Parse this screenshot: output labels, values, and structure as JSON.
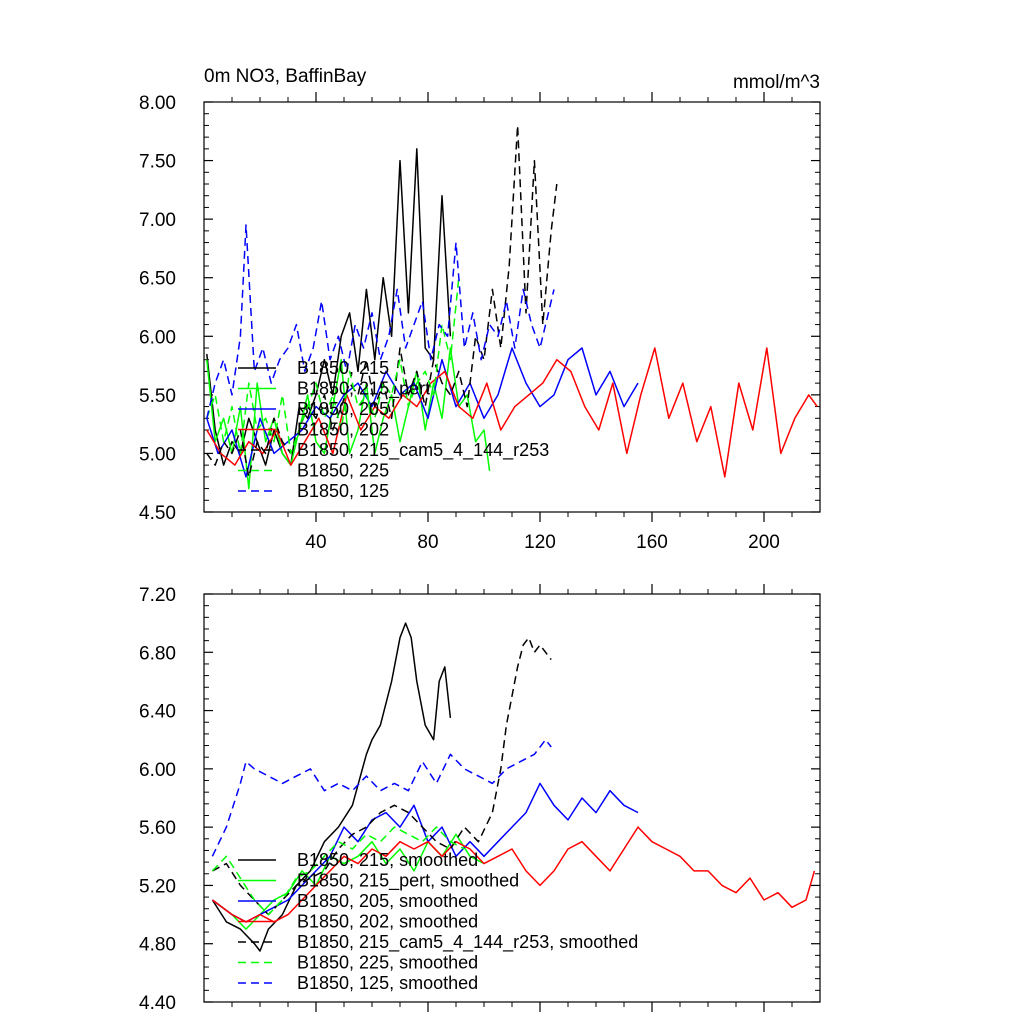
{
  "chart_data": [
    {
      "type": "line",
      "title": "0m NO3, BaffinBay",
      "units": "mmol/m^3",
      "xlabel": "",
      "ylabel": "",
      "xlim": [
        0,
        220
      ],
      "ylim": [
        4.5,
        8.0
      ],
      "xticks": [
        40,
        80,
        120,
        160,
        200
      ],
      "xtick_labels": [
        "40",
        "80",
        "120",
        "160",
        "200"
      ],
      "yticks": [
        4.5,
        5.0,
        5.5,
        6.0,
        6.5,
        7.0,
        7.5,
        8.0
      ],
      "ytick_labels": [
        "4.50",
        "5.00",
        "5.50",
        "6.00",
        "6.50",
        "7.00",
        "7.50",
        "8.00"
      ],
      "legend_position": "left",
      "series": [
        {
          "name": "B1850, 215",
          "color": "#000000",
          "dash": "solid",
          "x": [
            1,
            4,
            7,
            10,
            13,
            16,
            19,
            22,
            25,
            28,
            31,
            34,
            37,
            40,
            43,
            46,
            49,
            52,
            55,
            58,
            61,
            64,
            67,
            70,
            73,
            76,
            79,
            82,
            85,
            88
          ],
          "values": [
            5.85,
            5.2,
            4.9,
            5.1,
            5.0,
            5.3,
            5.1,
            4.9,
            5.2,
            5.0,
            4.9,
            5.4,
            5.3,
            5.5,
            5.8,
            5.5,
            6.0,
            6.2,
            5.7,
            6.4,
            5.8,
            6.5,
            6.0,
            7.5,
            6.2,
            7.6,
            5.9,
            5.8,
            7.2,
            6.0
          ]
        },
        {
          "name": "B1850, 215_pert",
          "color": "#00ff00",
          "dash": "solid",
          "x": [
            1,
            4,
            7,
            10,
            13,
            16,
            19,
            22,
            25,
            28,
            31,
            34,
            37,
            40,
            43,
            46,
            49,
            52,
            55,
            58,
            61,
            64,
            67,
            70,
            73,
            76,
            79,
            82,
            85,
            88,
            91,
            94,
            97,
            100,
            102
          ],
          "values": [
            5.8,
            5.1,
            5.3,
            5.0,
            5.4,
            4.7,
            5.6,
            5.1,
            5.3,
            5.0,
            4.9,
            5.2,
            5.5,
            5.1,
            5.0,
            5.4,
            5.8,
            5.0,
            5.2,
            5.6,
            5.0,
            5.3,
            5.5,
            5.1,
            5.4,
            5.7,
            5.2,
            5.6,
            5.3,
            5.9,
            5.4,
            5.5,
            5.1,
            5.2,
            4.85
          ]
        },
        {
          "name": "B1850, 205",
          "color": "#0000ff",
          "dash": "solid",
          "x": [
            1,
            5,
            10,
            15,
            20,
            25,
            30,
            35,
            40,
            45,
            50,
            55,
            60,
            65,
            70,
            75,
            80,
            85,
            90,
            95,
            100,
            105,
            110,
            115,
            120,
            125,
            130,
            135,
            140,
            145,
            150,
            155
          ],
          "values": [
            5.3,
            5.0,
            5.2,
            4.8,
            5.3,
            5.0,
            5.1,
            5.2,
            5.4,
            5.3,
            5.5,
            5.6,
            5.4,
            5.7,
            5.5,
            5.6,
            5.3,
            5.8,
            5.4,
            5.6,
            5.3,
            5.5,
            5.9,
            5.6,
            5.4,
            5.5,
            5.8,
            5.9,
            5.5,
            5.7,
            5.4,
            5.6
          ]
        },
        {
          "name": "B1850, 202",
          "color": "#ff0000",
          "dash": "solid",
          "x": [
            1,
            6,
            11,
            16,
            21,
            26,
            31,
            36,
            41,
            46,
            51,
            56,
            61,
            66,
            71,
            76,
            81,
            86,
            91,
            96,
            101,
            106,
            111,
            116,
            121,
            126,
            131,
            136,
            141,
            146,
            151,
            156,
            161,
            166,
            171,
            176,
            181,
            186,
            191,
            196,
            201,
            206,
            211,
            216,
            219
          ],
          "values": [
            5.2,
            5.0,
            4.9,
            5.1,
            5.0,
            5.2,
            4.9,
            5.1,
            5.3,
            5.0,
            5.5,
            5.2,
            5.4,
            5.3,
            5.5,
            5.4,
            5.6,
            5.7,
            5.4,
            5.3,
            5.6,
            5.2,
            5.4,
            5.5,
            5.6,
            5.8,
            5.7,
            5.4,
            5.2,
            5.6,
            5.0,
            5.5,
            5.9,
            5.3,
            5.6,
            5.1,
            5.4,
            4.8,
            5.6,
            5.2,
            5.9,
            5.0,
            5.3,
            5.5,
            5.4
          ]
        },
        {
          "name": "B1850, 215_cam5_4_144_r253",
          "color": "#000000",
          "dash": "dash",
          "x": [
            1,
            4,
            7,
            10,
            13,
            16,
            19,
            22,
            25,
            28,
            31,
            34,
            37,
            40,
            43,
            46,
            49,
            52,
            55,
            58,
            61,
            64,
            67,
            70,
            73,
            76,
            79,
            82,
            85,
            88,
            91,
            94,
            97,
            100,
            103,
            106,
            109,
            112,
            115,
            118,
            121,
            124,
            126
          ],
          "values": [
            5.0,
            4.9,
            5.1,
            5.0,
            5.2,
            4.8,
            5.1,
            5.0,
            5.3,
            5.1,
            5.0,
            5.2,
            5.4,
            5.3,
            5.5,
            5.2,
            5.4,
            5.6,
            5.5,
            5.8,
            5.4,
            5.6,
            5.3,
            5.9,
            5.5,
            5.7,
            5.4,
            5.8,
            5.6,
            5.5,
            5.7,
            5.4,
            6.0,
            5.8,
            6.4,
            5.9,
            6.6,
            7.8,
            6.2,
            7.5,
            6.1,
            6.9,
            7.3
          ]
        },
        {
          "name": "B1850, 225",
          "color": "#00ff00",
          "dash": "dash",
          "x": [
            1,
            4,
            7,
            10,
            13,
            16,
            19,
            22,
            25,
            28,
            31,
            34,
            37,
            40,
            43,
            46,
            49,
            52,
            55,
            58,
            61,
            64,
            67,
            70,
            73,
            76,
            79,
            82,
            85,
            88,
            91
          ],
          "values": [
            5.3,
            5.5,
            5.1,
            5.4,
            5.0,
            5.6,
            5.2,
            5.3,
            5.1,
            5.5,
            5.0,
            5.2,
            5.4,
            5.6,
            5.3,
            5.5,
            5.2,
            5.7,
            5.4,
            5.5,
            5.3,
            5.6,
            5.5,
            5.8,
            5.4,
            5.6,
            5.7,
            5.5,
            6.1,
            5.8,
            6.5
          ]
        },
        {
          "name": "B1850, 125",
          "color": "#0000ff",
          "dash": "dash",
          "x": [
            1,
            4,
            7,
            10,
            13,
            15,
            18,
            21,
            24,
            27,
            30,
            33,
            36,
            39,
            42,
            45,
            48,
            51,
            54,
            57,
            60,
            63,
            66,
            69,
            72,
            75,
            78,
            81,
            84,
            87,
            90,
            93,
            96,
            99,
            102,
            105,
            108,
            111,
            114,
            117,
            120,
            123,
            125
          ],
          "values": [
            5.3,
            5.6,
            5.8,
            5.5,
            6.0,
            6.95,
            5.7,
            5.9,
            5.6,
            5.8,
            5.9,
            6.1,
            5.7,
            5.9,
            6.3,
            5.8,
            6.0,
            5.7,
            6.1,
            5.9,
            6.2,
            5.8,
            6.0,
            6.4,
            5.9,
            6.1,
            6.3,
            5.8,
            6.1,
            6.0,
            6.8,
            5.9,
            6.2,
            5.8,
            6.1,
            6.0,
            6.3,
            5.9,
            6.4,
            6.1,
            5.9,
            6.2,
            6.4
          ]
        }
      ]
    },
    {
      "type": "line",
      "title": "",
      "xlabel": "",
      "ylabel": "",
      "xlim": [
        0,
        220
      ],
      "ylim": [
        4.4,
        7.2
      ],
      "xticks": [
        40,
        80,
        120,
        160,
        200
      ],
      "yticks": [
        4.4,
        4.8,
        5.2,
        5.6,
        6.0,
        6.4,
        6.8,
        7.2
      ],
      "ytick_labels": [
        "4.40",
        "4.80",
        "5.20",
        "5.60",
        "6.00",
        "6.40",
        "6.80",
        "7.20"
      ],
      "legend_position": "bottom-left",
      "series": [
        {
          "name": "B1850, 215, smoothed",
          "color": "#000000",
          "dash": "solid",
          "x": [
            3,
            8,
            13,
            18,
            20,
            23,
            28,
            33,
            38,
            43,
            48,
            53,
            58,
            60,
            63,
            67,
            70,
            72,
            74,
            76,
            79,
            82,
            84,
            86,
            88
          ],
          "values": [
            5.1,
            4.95,
            4.9,
            4.8,
            4.75,
            4.9,
            5.0,
            5.2,
            5.3,
            5.5,
            5.6,
            5.75,
            6.1,
            6.2,
            6.3,
            6.6,
            6.9,
            7.0,
            6.9,
            6.6,
            6.3,
            6.2,
            6.6,
            6.7,
            6.35
          ]
        },
        {
          "name": "B1850, 215_pert, smoothed",
          "color": "#00ff00",
          "dash": "solid",
          "x": [
            3,
            10,
            15,
            20,
            25,
            30,
            35,
            40,
            45,
            50,
            55,
            60,
            65,
            70,
            75,
            80,
            85,
            90,
            95,
            100
          ],
          "values": [
            5.1,
            5.0,
            4.9,
            5.0,
            5.1,
            5.15,
            5.3,
            5.2,
            5.4,
            5.35,
            5.4,
            5.5,
            5.35,
            5.45,
            5.3,
            5.5,
            5.4,
            5.55,
            5.4,
            5.35
          ]
        },
        {
          "name": "B1850, 205, smoothed",
          "color": "#0000ff",
          "dash": "solid",
          "x": [
            3,
            10,
            15,
            20,
            25,
            30,
            35,
            40,
            45,
            50,
            55,
            60,
            65,
            70,
            75,
            80,
            85,
            90,
            95,
            100,
            105,
            110,
            115,
            120,
            125,
            130,
            135,
            140,
            145,
            150,
            155
          ],
          "values": [
            5.1,
            5.0,
            4.95,
            5.0,
            5.05,
            5.1,
            5.2,
            5.3,
            5.4,
            5.6,
            5.5,
            5.65,
            5.7,
            5.6,
            5.75,
            5.5,
            5.6,
            5.4,
            5.5,
            5.4,
            5.5,
            5.6,
            5.7,
            5.9,
            5.75,
            5.65,
            5.8,
            5.7,
            5.85,
            5.75,
            5.7
          ]
        },
        {
          "name": "B1850, 202, smoothed",
          "color": "#ff0000",
          "dash": "solid",
          "x": [
            3,
            10,
            15,
            20,
            25,
            30,
            35,
            40,
            45,
            50,
            55,
            60,
            65,
            70,
            75,
            80,
            85,
            90,
            95,
            100,
            105,
            110,
            115,
            120,
            125,
            130,
            135,
            140,
            145,
            150,
            155,
            160,
            165,
            170,
            175,
            180,
            185,
            190,
            195,
            200,
            205,
            210,
            215,
            218
          ],
          "values": [
            5.1,
            5.0,
            4.95,
            5.0,
            4.95,
            5.0,
            5.1,
            5.2,
            5.3,
            5.4,
            5.35,
            5.45,
            5.4,
            5.5,
            5.45,
            5.5,
            5.4,
            5.5,
            5.45,
            5.35,
            5.4,
            5.45,
            5.3,
            5.2,
            5.3,
            5.45,
            5.5,
            5.4,
            5.3,
            5.45,
            5.6,
            5.5,
            5.45,
            5.4,
            5.3,
            5.3,
            5.2,
            5.15,
            5.25,
            5.1,
            5.15,
            5.05,
            5.1,
            5.3
          ]
        },
        {
          "name": "B1850, 215_cam5_4_144_r253, smoothed",
          "color": "#000000",
          "dash": "dash",
          "x": [
            3,
            8,
            13,
            18,
            23,
            28,
            33,
            38,
            43,
            48,
            53,
            58,
            63,
            68,
            73,
            78,
            83,
            88,
            93,
            98,
            103,
            106,
            108,
            110,
            112,
            114,
            116,
            118,
            120,
            122,
            124
          ],
          "values": [
            5.3,
            5.35,
            5.2,
            5.1,
            5.0,
            5.1,
            5.2,
            5.25,
            5.3,
            5.45,
            5.55,
            5.6,
            5.7,
            5.75,
            5.7,
            5.6,
            5.5,
            5.45,
            5.6,
            5.5,
            5.7,
            6.0,
            6.3,
            6.5,
            6.7,
            6.85,
            6.9,
            6.8,
            6.85,
            6.8,
            6.75
          ]
        },
        {
          "name": "B1850, 225, smoothed",
          "color": "#00ff00",
          "dash": "dash",
          "x": [
            3,
            8,
            13,
            18,
            23,
            28,
            33,
            38,
            43,
            48,
            53,
            58,
            63,
            68,
            73,
            78,
            83,
            88,
            93
          ],
          "values": [
            5.3,
            5.4,
            5.25,
            5.1,
            5.0,
            5.1,
            5.25,
            5.3,
            5.4,
            5.5,
            5.45,
            5.55,
            5.5,
            5.6,
            5.55,
            5.5,
            5.6,
            5.5,
            5.45
          ]
        },
        {
          "name": "B1850, 125, smoothed",
          "color": "#0000ff",
          "dash": "dash",
          "x": [
            3,
            8,
            13,
            15,
            18,
            23,
            28,
            33,
            38,
            43,
            48,
            53,
            58,
            63,
            68,
            73,
            78,
            83,
            88,
            93,
            98,
            103,
            108,
            113,
            118,
            122,
            124
          ],
          "values": [
            5.4,
            5.6,
            5.9,
            6.05,
            6.0,
            5.95,
            5.9,
            5.95,
            6.0,
            5.85,
            5.9,
            5.85,
            5.95,
            5.85,
            5.9,
            5.85,
            6.05,
            5.9,
            6.1,
            6.0,
            5.95,
            5.9,
            6.0,
            6.05,
            6.1,
            6.2,
            6.15
          ]
        }
      ]
    }
  ]
}
